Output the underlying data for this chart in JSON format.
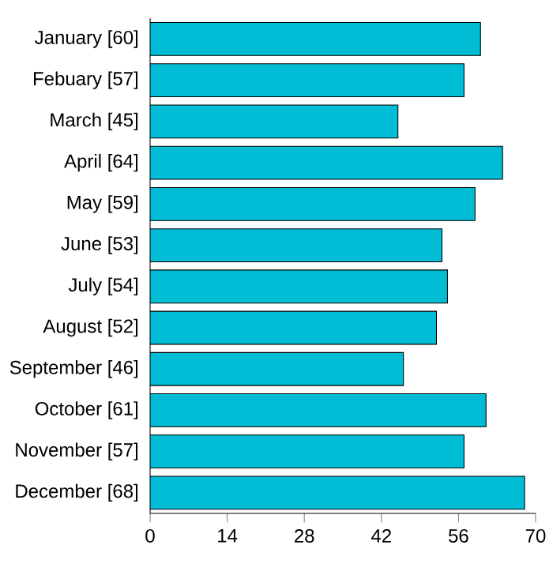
{
  "chart_data": {
    "type": "bar",
    "orientation": "horizontal",
    "categories": [
      "January [60]",
      "Febuary [57]",
      "March [45]",
      "April [64]",
      "May [59]",
      "June [53]",
      "July [54]",
      "August [52]",
      "September [46]",
      "October [61]",
      "November [57]",
      "December [68]"
    ],
    "values": [
      60,
      57,
      45,
      64,
      59,
      53,
      54,
      52,
      46,
      61,
      57,
      68
    ],
    "color": "#00bcd4",
    "xlim": [
      0,
      70
    ],
    "xticks": [
      0,
      14,
      28,
      42,
      56,
      70
    ],
    "grid": false
  }
}
